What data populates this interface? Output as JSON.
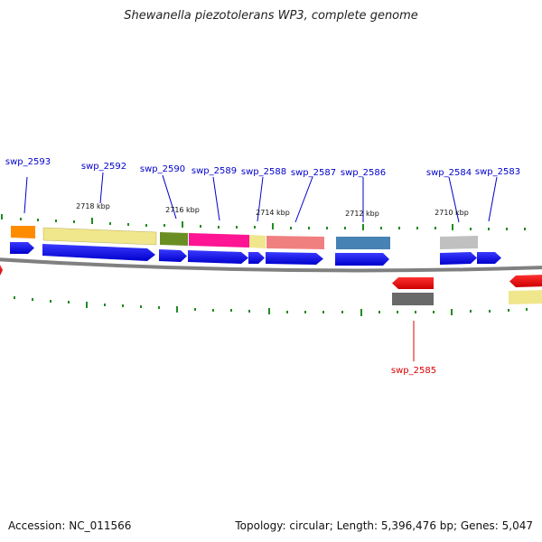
{
  "title": "Shewanella piezotolerans WP3, complete genome",
  "accession": "Accession: NC_011566",
  "summary": "Topology: circular; Length: 5,396,476 bp; Genes: 5,047",
  "colors": {
    "backbone": "#808080",
    "tick": "#228b22",
    "label_forward": "#0000cc",
    "label_reverse": "#dd0000",
    "cds_forward": "#0000ff",
    "cds_reverse": "#ff0000"
  },
  "ruler_labels": [
    "2718 kbp",
    "2716 kbp",
    "2714 kbp",
    "2712 kbp",
    "2710 kbp"
  ],
  "gene_labels": [
    {
      "text": "swp_2593",
      "strand": "forward"
    },
    {
      "text": "swp_2592",
      "strand": "forward"
    },
    {
      "text": "swp_2590",
      "strand": "forward"
    },
    {
      "text": "swp_2589",
      "strand": "forward"
    },
    {
      "text": "swp_2588",
      "strand": "forward"
    },
    {
      "text": "swp_2587",
      "strand": "forward"
    },
    {
      "text": "swp_2586",
      "strand": "forward"
    },
    {
      "text": "swp_2584",
      "strand": "forward"
    },
    {
      "text": "swp_2583",
      "strand": "forward"
    },
    {
      "text": "swp_2585",
      "strand": "reverse"
    }
  ],
  "feature_colors": [
    "#ff8c00",
    "#f0e68c",
    "#6b8e23",
    "#ff1493",
    "#f0e68c",
    "#f08080",
    "#4682b4",
    "#c0c0c0",
    "#696969",
    "#f0e68c"
  ]
}
